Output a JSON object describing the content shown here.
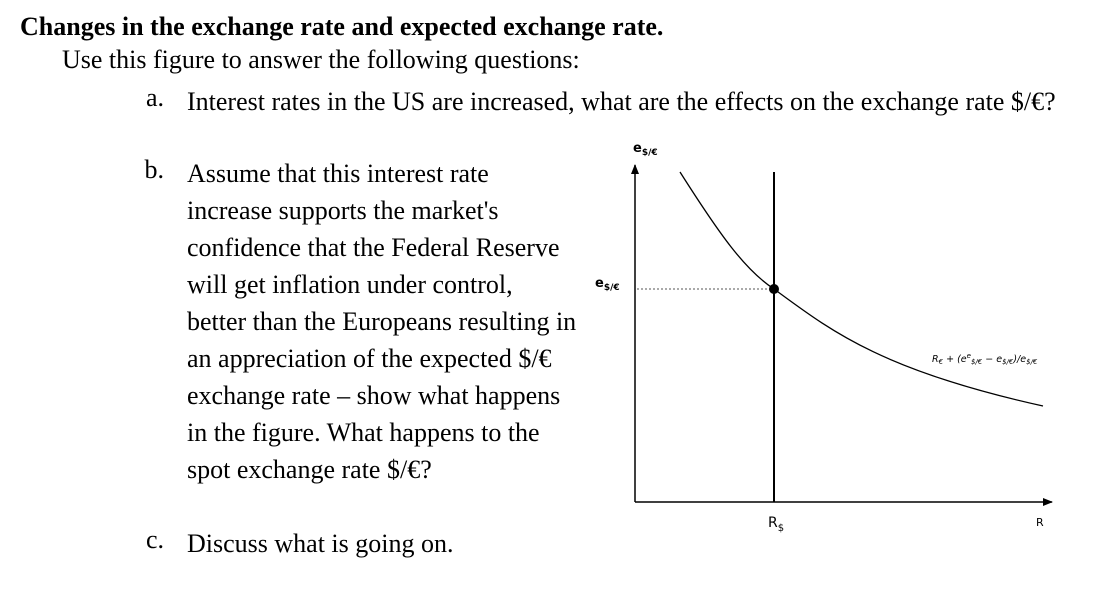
{
  "title": "Changes in the exchange rate and expected exchange rate.",
  "intro": "Use this figure to answer the following questions:",
  "questions": [
    {
      "marker": "a.",
      "text": "Interest rates in the US are increased, what are the effects on the exchange rate $/€?"
    },
    {
      "marker": "b.",
      "text": "Assume that this interest rate increase supports the market's confidence that the Federal Reserve will get inflation under control, better than the Europeans resulting in an appreciation of the expected $/€ exchange rate – show what happens in the figure. What happens to the spot exchange rate $/€?"
    },
    {
      "marker": "c.",
      "text": "Discuss what is going on."
    }
  ],
  "figure": {
    "y_axis_label": "e$/€",
    "y_equilibrium_label": "e$/€",
    "x_axis_label": "R",
    "x_equilibrium_label": "R$",
    "curve_label": "R€ + (ee$/€ − e$/€)/e$/€",
    "line_color": "#000000",
    "guide_color": "#555555"
  }
}
